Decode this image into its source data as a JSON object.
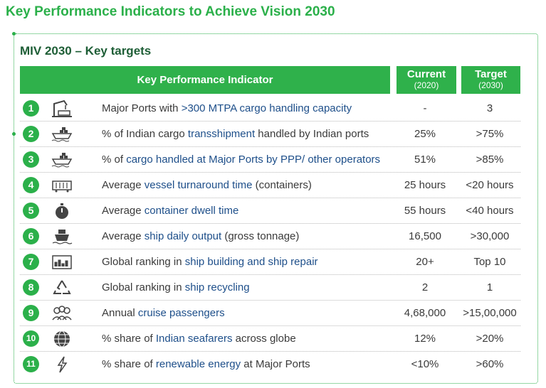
{
  "title": "Key Performance Indicators to Achieve Vision 2030",
  "subtitle": "MIV 2030 – Key targets",
  "header": {
    "kpi": "Key Performance Indicator",
    "current": "Current",
    "current_year": "(2020)",
    "target": "Target",
    "target_year": "(2030)"
  },
  "rows": [
    {
      "num": "1",
      "icon": "port-crane-icon",
      "pre": "Major Ports with ",
      "hl": ">300 MTPA cargo handling capacity",
      "post": "",
      "current": "-",
      "target": "3"
    },
    {
      "num": "2",
      "icon": "cargo-ship-icon",
      "pre": "% of Indian cargo ",
      "hl": "transshipment",
      "post": " handled by Indian ports",
      "current": "25%",
      "target": ">75%"
    },
    {
      "num": "3",
      "icon": "cargo-ship-icon",
      "pre": "% of ",
      "hl": "cargo handled at Major Ports by PPP/ other operators",
      "post": "",
      "current": "51%",
      "target": ">85%"
    },
    {
      "num": "4",
      "icon": "container-icon",
      "pre": "Average ",
      "hl": "vessel turnaround time",
      "post": " (containers)",
      "current": "25 hours",
      "target": "<20 hours"
    },
    {
      "num": "5",
      "icon": "stopwatch-icon",
      "pre": "Average ",
      "hl": "container dwell time",
      "post": "",
      "current": "55 hours",
      "target": "<40 hours"
    },
    {
      "num": "6",
      "icon": "ship-front-icon",
      "pre": "Average ",
      "hl": "ship daily output",
      "post": " (gross tonnage)",
      "current": "16,500",
      "target": ">30,000"
    },
    {
      "num": "7",
      "icon": "shipyard-icon",
      "pre": "Global ranking in ",
      "hl": "ship building and ship repair",
      "post": "",
      "current": "20+",
      "target": "Top 10"
    },
    {
      "num": "8",
      "icon": "recycle-icon",
      "pre": "Global ranking in ",
      "hl": "ship recycling",
      "post": "",
      "current": "2",
      "target": "1"
    },
    {
      "num": "9",
      "icon": "passengers-icon",
      "pre": "Annual ",
      "hl": "cruise passengers",
      "post": "",
      "current": "4,68,000",
      "target": ">15,00,000"
    },
    {
      "num": "10",
      "icon": "globe-icon",
      "pre": "% share of ",
      "hl": "Indian seafarers",
      "post": " across globe",
      "current": "12%",
      "target": ">20%"
    },
    {
      "num": "11",
      "icon": "lightning-icon",
      "pre": "% share of ",
      "hl": "renewable energy",
      "post": " at Major Ports",
      "current": "<10%",
      "target": ">60%"
    }
  ],
  "colors": {
    "accent": "#2bb04a",
    "header_bg": "#2fb14b",
    "highlight_text": "#1e4f8a",
    "subtitle": "#1e5e36"
  }
}
